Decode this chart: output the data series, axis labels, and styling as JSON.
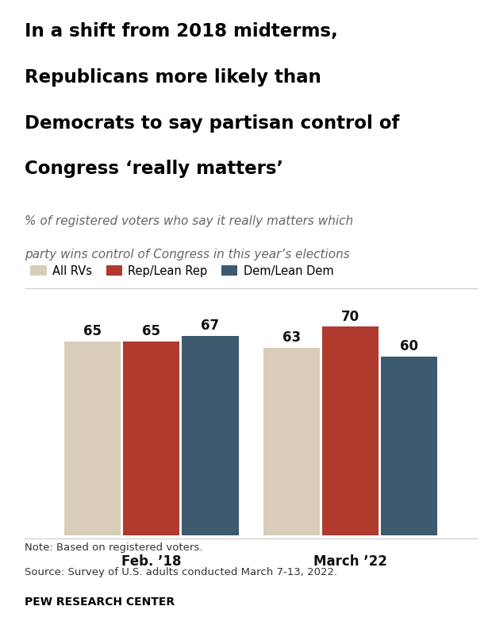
{
  "title_line1": "In a shift from 2018 midterms,",
  "title_line2": "Republicans more likely than",
  "title_line3": "Democrats to say partisan control of",
  "title_line4": "Congress ‘really matters’",
  "subtitle_line1": "% of registered voters who say it really matters which",
  "subtitle_line2": "party wins control of Congress in this year’s elections",
  "legend_labels": [
    "All RVs",
    "Rep/Lean Rep",
    "Dem/Lean Dem"
  ],
  "legend_colors": [
    "#d8cdb8",
    "#b03a2e",
    "#3d5a6e"
  ],
  "group_labels": [
    "Feb. ’18",
    "March ’22"
  ],
  "values": [
    [
      65,
      65,
      67
    ],
    [
      63,
      70,
      60
    ]
  ],
  "bar_colors": [
    "#d8cdb8",
    "#b03a2e",
    "#3d5a6e"
  ],
  "note_line1": "Note: Based on registered voters.",
  "note_line2": "Source: Survey of U.S. adults conducted March 7-13, 2022.",
  "source_label": "PEW RESEARCH CENTER",
  "ylim": [
    0,
    82
  ],
  "background_color": "#ffffff",
  "title_color": "#000000",
  "subtitle_color": "#666666",
  "note_color": "#333333"
}
